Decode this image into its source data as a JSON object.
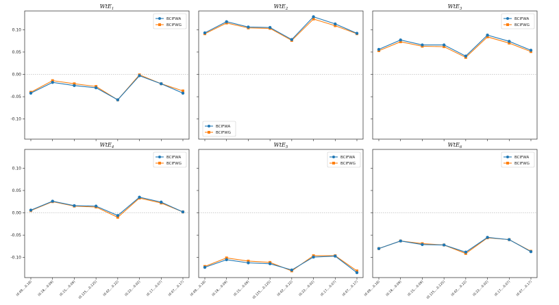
{
  "chart_data": {
    "type": "line",
    "x_tick_labels": [
      "(0.09,...0.18)",
      "(0.18,...0.09)",
      "(0.15,...0.09)",
      "(0.125,...0.125)",
      "(0.02,...0.22)",
      "(0.22,...0.02)",
      "(0.17,...0.07)",
      "(0.07,...0.17)"
    ],
    "y_tick_labels": [
      "0.10",
      "0.05",
      "0.00",
      "-0.05",
      "-0.10"
    ],
    "ylim": [
      -0.145,
      0.142
    ],
    "reference_line_y": 0,
    "series_names": [
      "BCIFWA",
      "BCIFWG"
    ],
    "colors": {
      "BCIFWA": "#1f77b4",
      "BCIFWG": "#ff7f0e",
      "refline": "#b0b0b0"
    },
    "panels": [
      {
        "title_main": "WtE",
        "title_sub": "1",
        "legend": "top-right",
        "series": [
          {
            "name": "BCIFWA",
            "values": [
              -0.042,
              -0.018,
              -0.025,
              -0.03,
              -0.057,
              -0.003,
              -0.021,
              -0.042
            ]
          },
          {
            "name": "BCIFWG",
            "values": [
              -0.04,
              -0.014,
              -0.021,
              -0.027,
              -0.057,
              -0.001,
              -0.021,
              -0.037
            ]
          }
        ]
      },
      {
        "title_main": "WtE",
        "title_sub": "2",
        "legend": "bottom-left",
        "series": [
          {
            "name": "BCIFWA",
            "values": [
              0.093,
              0.118,
              0.106,
              0.105,
              0.078,
              0.129,
              0.113,
              0.092
            ]
          },
          {
            "name": "BCIFWG",
            "values": [
              0.091,
              0.115,
              0.104,
              0.103,
              0.076,
              0.124,
              0.109,
              0.091
            ]
          }
        ]
      },
      {
        "title_main": "WtE",
        "title_sub": "3",
        "legend": "top-right",
        "series": [
          {
            "name": "BCIFWA",
            "values": [
              0.056,
              0.077,
              0.066,
              0.066,
              0.041,
              0.088,
              0.074,
              0.054
            ]
          },
          {
            "name": "BCIFWG",
            "values": [
              0.053,
              0.073,
              0.063,
              0.062,
              0.038,
              0.084,
              0.07,
              0.051
            ]
          }
        ]
      },
      {
        "title_main": "WtE",
        "title_sub": "4",
        "legend": "top-right",
        "series": [
          {
            "name": "BCIFWA",
            "values": [
              0.006,
              0.026,
              0.016,
              0.015,
              -0.006,
              0.035,
              0.024,
              0.002
            ]
          },
          {
            "name": "BCIFWG",
            "values": [
              0.005,
              0.025,
              0.015,
              0.013,
              -0.01,
              0.033,
              0.022,
              0.002
            ]
          }
        ]
      },
      {
        "title_main": "WtE",
        "title_sub": "5",
        "legend": "top-right",
        "series": [
          {
            "name": "BCIFWA",
            "values": [
              -0.122,
              -0.105,
              -0.112,
              -0.114,
              -0.128,
              -0.099,
              -0.097,
              -0.134
            ]
          },
          {
            "name": "BCIFWG",
            "values": [
              -0.12,
              -0.101,
              -0.108,
              -0.111,
              -0.13,
              -0.096,
              -0.096,
              -0.13
            ]
          }
        ]
      },
      {
        "title_main": "WtE",
        "title_sub": "6",
        "legend": "top-right",
        "series": [
          {
            "name": "BCIFWA",
            "values": [
              -0.08,
              -0.063,
              -0.071,
              -0.072,
              -0.088,
              -0.055,
              -0.06,
              -0.087
            ]
          },
          {
            "name": "BCIFWG",
            "values": [
              -0.08,
              -0.063,
              -0.069,
              -0.072,
              -0.091,
              -0.056,
              -0.06,
              -0.086
            ]
          }
        ]
      }
    ]
  }
}
